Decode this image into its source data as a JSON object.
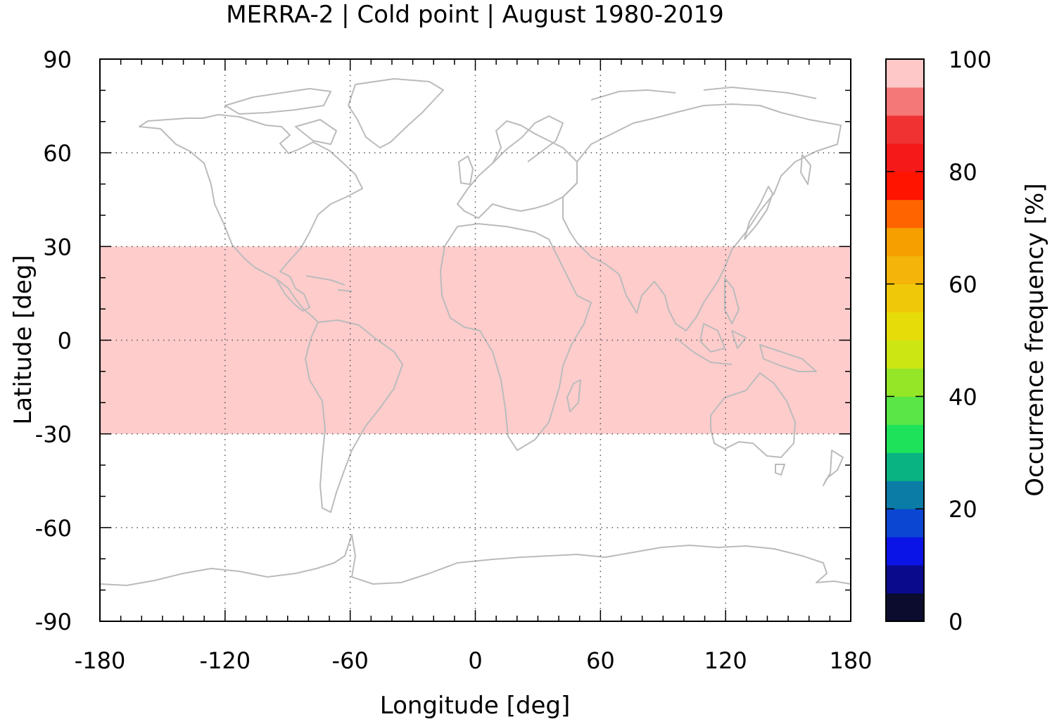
{
  "chart_data": {
    "type": "heatmap",
    "title": "MERRA-2 | Cold point | August 1980-2019",
    "xlabel": "Longitude [deg]",
    "ylabel": "Latitude [deg]",
    "colorbar_label": "Occurrence frequency [%]",
    "xlim": [
      -180,
      180
    ],
    "ylim": [
      -90,
      90
    ],
    "xticks": [
      -180,
      -120,
      -60,
      0,
      60,
      120,
      180
    ],
    "xtick_labels": [
      "-180",
      "-120",
      "-60",
      "0",
      "60",
      "120",
      "180"
    ],
    "yticks": [
      90,
      60,
      30,
      0,
      -30,
      -60,
      -90
    ],
    "ytick_labels": [
      "90",
      "60",
      "30",
      "0",
      "-30",
      "-60",
      "-90"
    ],
    "grid": true,
    "colorbar_ticks": [
      0,
      20,
      40,
      60,
      80,
      100
    ],
    "colorbar_tick_labels": [
      "0",
      "20",
      "40",
      "60",
      "80",
      "100"
    ],
    "colorbar_range": [
      0,
      100
    ],
    "colorbar_levels": [
      "#0b0c2e",
      "#0a0a8c",
      "#0a14e6",
      "#0a46d2",
      "#0a7ca6",
      "#0ab482",
      "#1ee35a",
      "#5ae646",
      "#96e628",
      "#cce614",
      "#e6dc0a",
      "#f0c80a",
      "#f5b40a",
      "#f5a000",
      "#ff6400",
      "#ff1400",
      "#f51919",
      "#f03232",
      "#f57878",
      "#ffc8c8"
    ],
    "regions": [
      {
        "lat_range": [
          -30,
          30
        ],
        "lon_range": [
          -180,
          180
        ],
        "value": 100,
        "color": "#ffcccc"
      }
    ],
    "map_outline_color": "#bbbbbb"
  }
}
